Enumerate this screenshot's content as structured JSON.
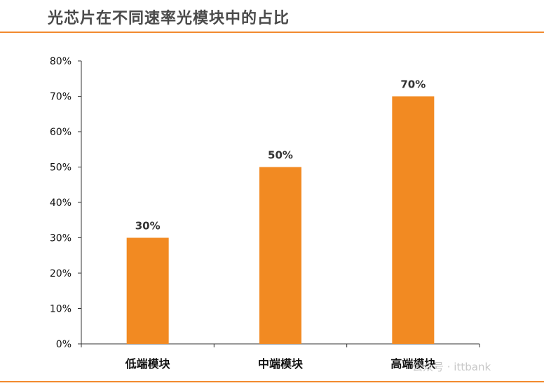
{
  "title": "光芯片在不同速率光模块中的占比",
  "watermark": "公众号 · ittbank",
  "colors": {
    "bar": "#f28a22",
    "accent_rule": "#f28a2e",
    "axis": "#333333"
  },
  "chart_data": {
    "type": "bar",
    "title": "",
    "xlabel": "",
    "ylabel": "",
    "categories": [
      "低端模块",
      "中端模块",
      "高端模块"
    ],
    "values": [
      30,
      50,
      70
    ],
    "value_labels": [
      "30%",
      "50%",
      "70%"
    ],
    "ylim": [
      0,
      80
    ],
    "y_ticks": [
      0,
      10,
      20,
      30,
      40,
      50,
      60,
      70,
      80
    ],
    "y_tick_labels": [
      "0%",
      "10%",
      "20%",
      "30%",
      "40%",
      "50%",
      "60%",
      "70%",
      "80%"
    ],
    "grid": false,
    "legend": "none"
  }
}
